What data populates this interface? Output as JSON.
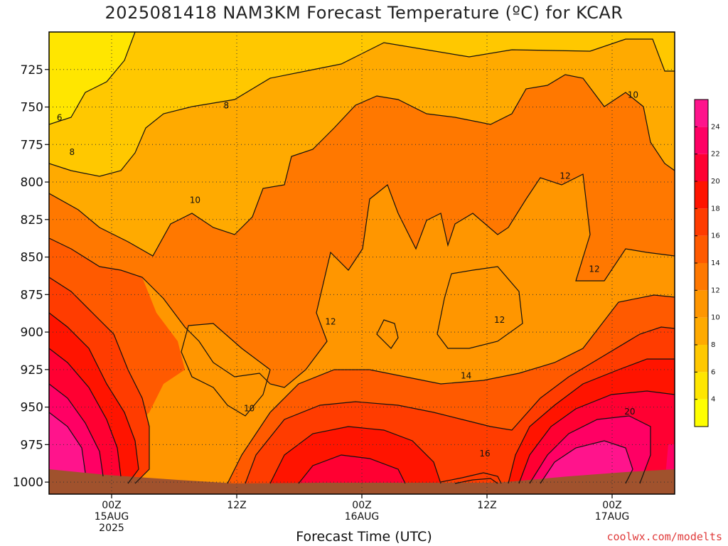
{
  "chart_data": {
    "type": "heatmap",
    "title": "2025081418 NAM3KM Forecast Temperature (ºC) for KCAR",
    "xlabel": "Forecast Time (UTC)",
    "ylabel": "",
    "y_axis": {
      "ticks": [
        725,
        750,
        775,
        800,
        825,
        850,
        875,
        900,
        925,
        950,
        975,
        1000
      ],
      "range_hpa": [
        700,
        1008
      ],
      "inverted": true
    },
    "x_axis": {
      "ticks": [
        {
          "label": "00Z",
          "sub1": "15AUG",
          "sub2": "2025",
          "hour": 6
        },
        {
          "label": "12Z",
          "sub1": "",
          "sub2": "",
          "hour": 18
        },
        {
          "label": "00Z",
          "sub1": "16AUG",
          "sub2": "",
          "hour": 30
        },
        {
          "label": "12Z",
          "sub1": "",
          "sub2": "",
          "hour": 42
        },
        {
          "label": "00Z",
          "sub1": "17AUG",
          "sub2": "",
          "hour": 54
        }
      ],
      "range_hours": [
        0,
        60
      ]
    },
    "colorbar": {
      "levels": [
        2,
        4,
        6,
        8,
        10,
        12,
        14,
        16,
        18,
        20,
        22,
        24,
        26
      ],
      "labels": [
        "4",
        "6",
        "8",
        "10",
        "12",
        "14",
        "16",
        "18",
        "20",
        "22",
        "24"
      ],
      "colors": [
        "#ffff00",
        "#ffe600",
        "#ffc800",
        "#ffaa00",
        "#ff9600",
        "#ff7800",
        "#ff5a00",
        "#ff3c00",
        "#ff1400",
        "#ff0032",
        "#ff0064",
        "#ff148c"
      ]
    },
    "contour_labels": [
      {
        "text": "6",
        "hour": 1.0,
        "p": 757
      },
      {
        "text": "8",
        "hour": 2.2,
        "p": 780
      },
      {
        "text": "8",
        "hour": 17.0,
        "p": 749
      },
      {
        "text": "10",
        "hour": 14.0,
        "p": 812
      },
      {
        "text": "10",
        "hour": 56.0,
        "p": 742
      },
      {
        "text": "10",
        "hour": 19.2,
        "p": 951
      },
      {
        "text": "12",
        "hour": 27.0,
        "p": 893
      },
      {
        "text": "12",
        "hour": 43.2,
        "p": 892
      },
      {
        "text": "12",
        "hour": 49.5,
        "p": 796
      },
      {
        "text": "12",
        "hour": 52.3,
        "p": 858
      },
      {
        "text": "14",
        "hour": 40.0,
        "p": 929
      },
      {
        "text": "16",
        "hour": 41.8,
        "p": 981
      },
      {
        "text": "20",
        "hour": 55.7,
        "p": 953
      }
    ],
    "grid": "dotted",
    "legend": "right colorbar"
  },
  "footer": {
    "credit": "coolwx.com/modelts"
  }
}
